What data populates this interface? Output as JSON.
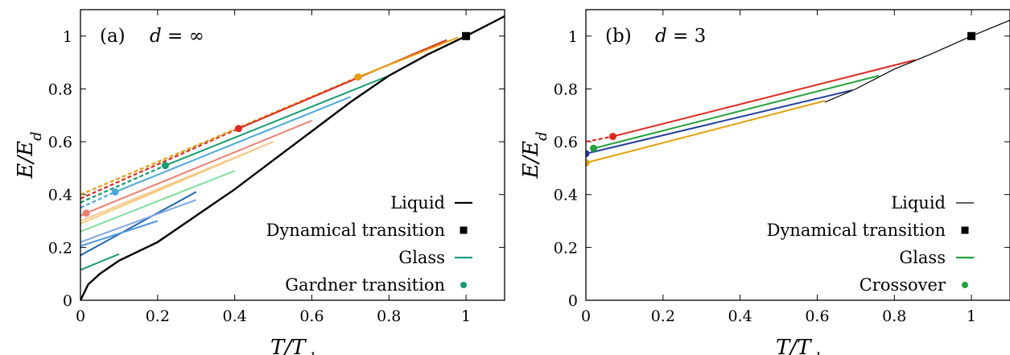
{
  "chart_data": [
    {
      "type": "line",
      "panel_label": "(a)",
      "annotation": "d = ∞",
      "xlabel": "T/T_d",
      "ylabel": "E/E_d",
      "xlim": [
        0,
        1.1
      ],
      "ylim": [
        0,
        1.1
      ],
      "xticks": [
        0,
        0.2,
        0.4,
        0.6,
        0.8,
        1
      ],
      "yticks": [
        0,
        0.2,
        0.4,
        0.6,
        0.8,
        1
      ],
      "xtick_labels": [
        "0",
        "0.2",
        "0.4",
        "0.6",
        "0.8",
        "1"
      ],
      "ytick_labels": [
        "0",
        "0.2",
        "0.4",
        "0.6",
        "0.8",
        "1"
      ],
      "legend_position": "bottom-right",
      "legend": [
        {
          "label": "Liquid",
          "kind": "line",
          "color": "#000000"
        },
        {
          "label": "Dynamical transition",
          "kind": "square",
          "color": "#000000"
        },
        {
          "label": "Glass",
          "kind": "line",
          "color": "#1f9e89"
        },
        {
          "label": "Gardner transition",
          "kind": "dot",
          "color": "#119e6d"
        }
      ],
      "liquid": {
        "color": "#000000",
        "x": [
          0,
          0.02,
          0.05,
          0.1,
          0.2,
          0.3,
          0.4,
          0.5,
          0.6,
          0.7,
          0.8,
          0.9,
          1.0,
          1.1
        ],
        "y": [
          0,
          0.06,
          0.1,
          0.15,
          0.22,
          0.32,
          0.42,
          0.53,
          0.64,
          0.75,
          0.85,
          0.93,
          1.0,
          1.075
        ]
      },
      "dynamical_transition": {
        "x": 1.0,
        "y": 1.0
      },
      "glass": [
        {
          "color": "#119e6d",
          "x": [
            0,
            0.1
          ],
          "y": [
            0.115,
            0.175
          ]
        },
        {
          "color": "#1f66b0",
          "x": [
            0,
            0.3
          ],
          "y": [
            0.17,
            0.41
          ]
        },
        {
          "color": "#4f98e0",
          "x": [
            0,
            0.2
          ],
          "y": [
            0.205,
            0.3
          ]
        },
        {
          "color": "#7fa6e8",
          "x": [
            0,
            0.3
          ],
          "y": [
            0.22,
            0.38
          ]
        },
        {
          "color": "#7fe09b",
          "x": [
            0,
            0.4
          ],
          "y": [
            0.26,
            0.49
          ]
        },
        {
          "color": "#f3cb72",
          "x": [
            0,
            0.5
          ],
          "y": [
            0.29,
            0.6
          ]
        },
        {
          "color": "#f7c98f",
          "x": [
            0,
            0.5
          ],
          "y": [
            0.3,
            0.6
          ]
        },
        {
          "color": "#f07f70",
          "x": [
            0.015,
            0.6
          ],
          "y": [
            0.33,
            0.68
          ]
        },
        {
          "color": "#49aae0",
          "x": [
            0.09,
            0.7
          ],
          "y": [
            0.41,
            0.77
          ]
        },
        {
          "color": "#119e6d",
          "x": [
            0.22,
            0.8
          ],
          "y": [
            0.51,
            0.85
          ]
        },
        {
          "color": "#e2271f",
          "x": [
            0.41,
            0.95
          ],
          "y": [
            0.65,
            0.985
          ]
        },
        {
          "color": "#e69f00",
          "x": [
            0.72,
            0.98
          ],
          "y": [
            0.845,
            0.995
          ]
        }
      ],
      "gardner_continuation": [
        {
          "color": "#f07f70",
          "x": [
            0,
            0.015
          ],
          "y": [
            0.32,
            0.33
          ]
        },
        {
          "color": "#49aae0",
          "x": [
            0,
            0.09
          ],
          "y": [
            0.35,
            0.41
          ]
        },
        {
          "color": "#119e6d",
          "x": [
            0,
            0.22
          ],
          "y": [
            0.37,
            0.51
          ]
        },
        {
          "color": "#e2271f",
          "x": [
            0,
            0.41
          ],
          "y": [
            0.385,
            0.65
          ]
        },
        {
          "color": "#e69f00",
          "x": [
            0,
            0.72
          ],
          "y": [
            0.4,
            0.845
          ]
        }
      ],
      "gardner_points": [
        {
          "color": "#f07f70",
          "x": 0.015,
          "y": 0.33
        },
        {
          "color": "#49aae0",
          "x": 0.09,
          "y": 0.41
        },
        {
          "color": "#119e6d",
          "x": 0.22,
          "y": 0.51
        },
        {
          "color": "#e2271f",
          "x": 0.41,
          "y": 0.65
        },
        {
          "color": "#e69f00",
          "x": 0.72,
          "y": 0.845
        }
      ]
    },
    {
      "type": "line",
      "panel_label": "(b)",
      "annotation": "d = 3",
      "xlabel": "T/T_d",
      "ylabel": "E/E_d",
      "xlim": [
        0,
        1.1
      ],
      "ylim": [
        0,
        1.1
      ],
      "xticks": [
        0,
        0.2,
        0.4,
        0.6,
        0.8,
        1
      ],
      "yticks": [
        0,
        0.2,
        0.4,
        0.6,
        0.8,
        1
      ],
      "xtick_labels": [
        "0",
        "0.2",
        "0.4",
        "0.6",
        "0.8",
        "1"
      ],
      "ytick_labels": [
        "0",
        "0.2",
        "0.4",
        "0.6",
        "0.8",
        "1"
      ],
      "legend_position": "bottom-right",
      "legend": [
        {
          "label": "Liquid",
          "kind": "thinline",
          "color": "#000000"
        },
        {
          "label": "Dynamical transition",
          "kind": "square",
          "color": "#000000"
        },
        {
          "label": "Glass",
          "kind": "line",
          "color": "#22a13a"
        },
        {
          "label": "Crossover",
          "kind": "dot",
          "color": "#22a13a"
        }
      ],
      "liquid": {
        "color": "#000000",
        "x": [
          0.62,
          0.7,
          0.8,
          0.9,
          1.0,
          1.1
        ],
        "y": [
          0.75,
          0.8,
          0.875,
          0.935,
          1.0,
          1.06
        ]
      },
      "dynamical_transition": {
        "x": 1.0,
        "y": 1.0
      },
      "glass": [
        {
          "color": "#e69f00",
          "x": [
            0,
            0.62
          ],
          "y": [
            0.52,
            0.755
          ]
        },
        {
          "color": "#2440a0",
          "x": [
            0,
            0.69
          ],
          "y": [
            0.555,
            0.795
          ]
        },
        {
          "color": "#22a13a",
          "x": [
            0.02,
            0.76
          ],
          "y": [
            0.575,
            0.85
          ]
        },
        {
          "color": "#e2271f",
          "x": [
            0.07,
            0.855
          ],
          "y": [
            0.62,
            0.91
          ]
        }
      ],
      "crossover_continuation": [
        {
          "color": "#e2271f",
          "x": [
            0,
            0.07
          ],
          "y": [
            0.6,
            0.62
          ]
        }
      ],
      "crossover_points": [
        {
          "color": "#e69f00",
          "x": 0.0,
          "y": 0.52
        },
        {
          "color": "#2440a0",
          "x": 0.0,
          "y": 0.555
        },
        {
          "color": "#22a13a",
          "x": 0.02,
          "y": 0.575
        },
        {
          "color": "#e2271f",
          "x": 0.07,
          "y": 0.62
        }
      ]
    }
  ]
}
